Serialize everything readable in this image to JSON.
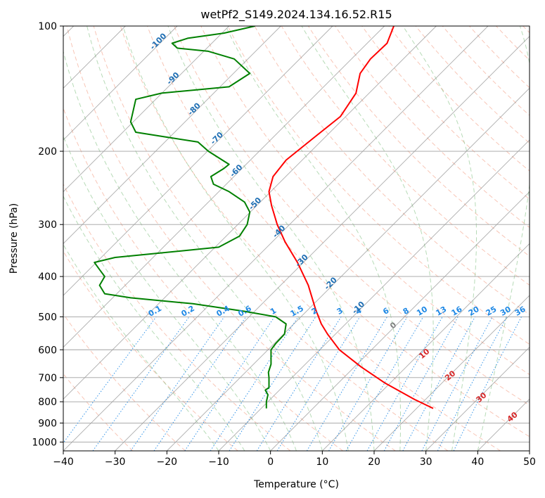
{
  "chart_data": {
    "type": "line",
    "title": "wetPf2_S149.2024.134.16.52.R15",
    "xlabel": "Temperature (°C)",
    "ylabel": "Pressure (hPa)",
    "xlim": [
      -40,
      50
    ],
    "ylim": [
      1050,
      100
    ],
    "yscale": "log",
    "grid": true,
    "x_ticks": [
      "−40",
      "−30",
      "−20",
      "−10",
      "0",
      "10",
      "20",
      "30",
      "40",
      "50"
    ],
    "y_ticks": [
      "100",
      "200",
      "300",
      "400",
      "500",
      "600",
      "700",
      "800",
      "900",
      "1000"
    ],
    "colors": {
      "temperature": "#ff0000",
      "dewpoint": "#008000",
      "dry_adiabat": "#f08060",
      "moist_adiabat": "#60b060",
      "mixing_ratio": "#1e88e5",
      "isotherm": "#808080",
      "isotherm_label": "#1f6fb4",
      "moist_label": "#d62728"
    },
    "series": [
      {
        "key": "temperature",
        "points": [
          [
            31.4,
            830
          ],
          [
            27.8,
            790
          ],
          [
            22,
            720
          ],
          [
            17.5,
            660
          ],
          [
            13.3,
            600
          ],
          [
            11,
            550
          ],
          [
            9.8,
            520
          ],
          [
            8.7,
            480
          ],
          [
            7.3,
            420
          ],
          [
            5.2,
            370
          ],
          [
            2.8,
            330
          ],
          [
            1.3,
            300
          ],
          [
            0.2,
            270
          ],
          [
            -0.3,
            250
          ],
          [
            0.5,
            230
          ],
          [
            3,
            210
          ],
          [
            8.5,
            185
          ],
          [
            13.5,
            165
          ],
          [
            16.5,
            145
          ],
          [
            17.3,
            130
          ],
          [
            19.3,
            120
          ],
          [
            22.5,
            110
          ],
          [
            23.8,
            100
          ]
        ]
      },
      {
        "key": "dewpoint",
        "points": [
          [
            -0.8,
            830
          ],
          [
            -0.8,
            800
          ],
          [
            -0.5,
            770
          ],
          [
            -1,
            750
          ],
          [
            -0.3,
            740
          ],
          [
            -0.3,
            700
          ],
          [
            -0.4,
            680
          ],
          [
            0.1,
            650
          ],
          [
            0.1,
            620
          ],
          [
            0.1,
            600
          ],
          [
            1,
            580
          ],
          [
            2.7,
            550
          ],
          [
            3,
            520
          ],
          [
            1,
            500
          ],
          [
            -5,
            485
          ],
          [
            -15,
            465
          ],
          [
            -27,
            450
          ],
          [
            -32,
            440
          ],
          [
            -33,
            420
          ],
          [
            -32,
            400
          ],
          [
            -33,
            385
          ],
          [
            -34,
            370
          ],
          [
            -30,
            360
          ],
          [
            -20,
            350
          ],
          [
            -10,
            340
          ],
          [
            -6,
            320
          ],
          [
            -4.5,
            300
          ],
          [
            -4,
            280
          ],
          [
            -5,
            265
          ],
          [
            -8,
            250
          ],
          [
            -11,
            240
          ],
          [
            -11.5,
            230
          ],
          [
            -9,
            220
          ],
          [
            -8,
            215
          ],
          [
            -12,
            200
          ],
          [
            -14,
            190
          ],
          [
            -20,
            185
          ],
          [
            -26,
            180
          ],
          [
            -27,
            170
          ],
          [
            -26,
            150
          ],
          [
            -21,
            145
          ],
          [
            -8,
            140
          ],
          [
            -4,
            130
          ],
          [
            -7,
            120
          ],
          [
            -12,
            115
          ],
          [
            -18,
            113
          ],
          [
            -19,
            110
          ],
          [
            -16,
            107
          ],
          [
            -9,
            104
          ],
          [
            -3,
            100
          ]
        ]
      }
    ],
    "dry_adiabat_thetas_c": [
      -30,
      -20,
      -10,
      0,
      10,
      20,
      30,
      40,
      50,
      60,
      70,
      80,
      90,
      100,
      110,
      120,
      130,
      140,
      150,
      160,
      170,
      180,
      190,
      200,
      210,
      220
    ],
    "moist_adiabat_thetas_c": [
      -10,
      -5,
      0,
      5,
      10,
      15,
      20,
      25,
      30,
      35,
      40
    ],
    "isotherm_labels": [
      {
        "text": "-100",
        "t": -100,
        "p": 110
      },
      {
        "text": "-90",
        "t": -90,
        "p": 135
      },
      {
        "text": "-80",
        "t": -80,
        "p": 160
      },
      {
        "text": "-70",
        "t": -70,
        "p": 188
      },
      {
        "text": "-60",
        "t": -60,
        "p": 225
      },
      {
        "text": "-50",
        "t": -50,
        "p": 270
      },
      {
        "text": "-40",
        "t": -40,
        "p": 315
      },
      {
        "text": "-30",
        "t": -30,
        "p": 370
      },
      {
        "text": "-20",
        "t": -20,
        "p": 420
      },
      {
        "text": "-10",
        "t": -10,
        "p": 480
      }
    ],
    "mixing_ratio_labels": [
      "0.1",
      "0.2",
      "0.4",
      "0.6",
      "1",
      "1.5",
      "2",
      "3",
      "4",
      "6",
      "8",
      "10",
      "13",
      "16",
      "20",
      "25",
      "30",
      "36"
    ],
    "moist_adiabat_labels": [
      {
        "text": "0",
        "t": 24,
        "p": 530,
        "color": "gray"
      },
      {
        "text": "10",
        "t": 30,
        "p": 620
      },
      {
        "text": "20",
        "t": 35,
        "p": 700
      },
      {
        "text": "30",
        "t": 41,
        "p": 790
      },
      {
        "text": "40",
        "t": 47,
        "p": 880
      }
    ]
  }
}
